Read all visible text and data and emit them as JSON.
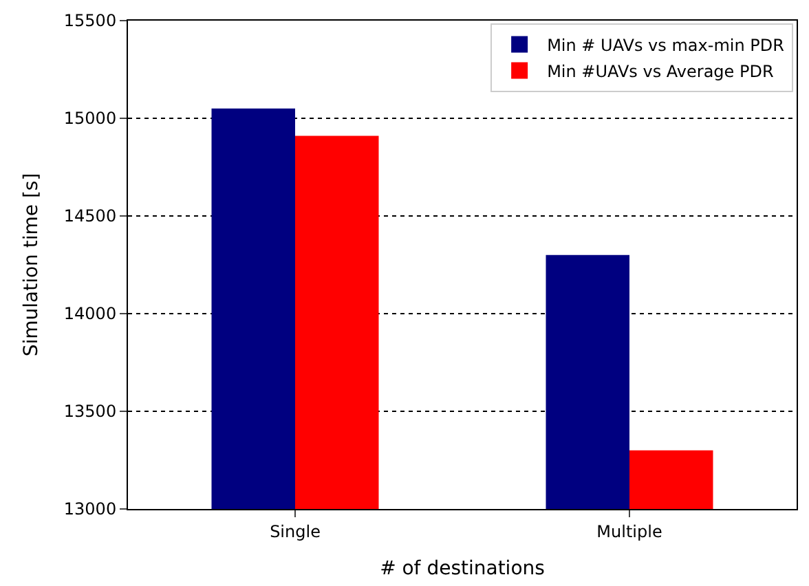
{
  "chart_data": {
    "type": "bar",
    "xlabel": "# of destinations",
    "ylabel": "Simulation time [s]",
    "categories": [
      "Single",
      "Multiple"
    ],
    "series": [
      {
        "name": "Min # UAVs vs max-min PDR",
        "color": "#000080",
        "values": [
          15050,
          14300
        ]
      },
      {
        "name": "Min #UAVs vs Average PDR",
        "color": "#ff0000",
        "values": [
          14910,
          13300
        ]
      }
    ],
    "ylim": [
      13000,
      15500
    ],
    "yticks": [
      13000,
      13500,
      14000,
      14500,
      15000,
      15500
    ],
    "grid": "y",
    "legend": "top right"
  }
}
